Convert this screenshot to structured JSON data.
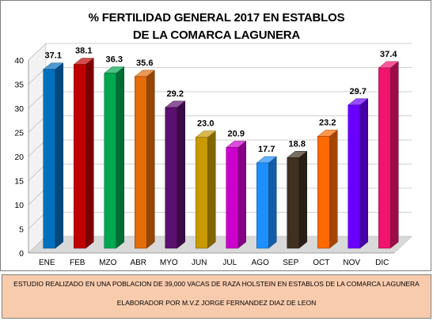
{
  "chart_data": {
    "type": "bar",
    "title": "% FERTILIDAD GENERAL 2017 EN ESTABLOS",
    "subtitle": "DE LA COMARCA LAGUNERA",
    "categories": [
      "ENE",
      "FEB",
      "MZO",
      "ABR",
      "MYO",
      "JUN",
      "JUL",
      "AGO",
      "SEP",
      "OCT",
      "NOV",
      "DIC"
    ],
    "values": [
      37.1,
      38.1,
      36.3,
      35.6,
      29.2,
      23.0,
      20.9,
      17.7,
      18.8,
      23.2,
      29.7,
      37.4
    ],
    "data_labels": [
      "37.1",
      "38.1",
      "36.3",
      "35.6",
      "29.2",
      "23.0",
      "20.9",
      "17.7",
      "18.8",
      "23.2",
      "29.7",
      "37.4"
    ],
    "y_ticks": [
      "0",
      "5",
      "10",
      "15",
      "20",
      "25",
      "30",
      "35",
      "40"
    ],
    "ylim": [
      0,
      40
    ],
    "grid": true,
    "colors": [
      "#0070c0",
      "#c00000",
      "#00a650",
      "#e36c09",
      "#5b0f6e",
      "#c89a00",
      "#cc00cc",
      "#1e8fff",
      "#403020",
      "#ff6a00",
      "#6a00ff",
      "#f0146e"
    ],
    "xlabel": "",
    "ylabel": ""
  },
  "footer": {
    "line1": "ESTUDIO REALIZADO EN UNA POBLACION DE 39,000 VACAS DE RAZA HOLSTEIN EN ESTABLOS DE LA COMARCA LAGUNERA",
    "line2": "ELABORADOR POR M.V.Z JORGE FERNANDEZ DIAZ DE  LEON"
  }
}
